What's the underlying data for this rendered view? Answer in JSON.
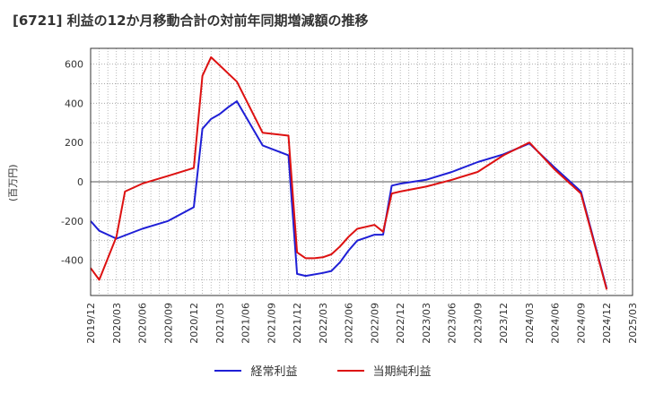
{
  "title": "[6721]  利益の12か月移動合計の対前年同期増減額の推移",
  "chart_data": {
    "type": "line",
    "title": "[6721]  利益の12か月移動合計の対前年同期増減額の推移",
    "ylabel": "(百万円)",
    "xlabel": "",
    "ylim": [
      -580,
      680
    ],
    "yticks": [
      600,
      400,
      200,
      0,
      -200,
      -400
    ],
    "ytick_labels": [
      "600",
      "400",
      "200",
      "0",
      "-200",
      "-400"
    ],
    "xtick_labels": [
      "2019/12",
      "2020/03",
      "2020/06",
      "2020/09",
      "2020/12",
      "2021/03",
      "2021/06",
      "2021/09",
      "2021/12",
      "2022/03",
      "2022/06",
      "2022/09",
      "2022/12",
      "2023/03",
      "2023/06",
      "2023/09",
      "2023/12",
      "2024/03",
      "2024/06",
      "2024/09",
      "2024/12",
      "2025/03"
    ],
    "x_months": [
      "2019/12",
      "2020/01",
      "2020/02",
      "2020/03",
      "2020/04",
      "2020/05",
      "2020/06",
      "2020/07",
      "2020/08",
      "2020/09",
      "2020/10",
      "2020/11",
      "2020/12",
      "2021/01",
      "2021/02",
      "2021/03",
      "2021/04",
      "2021/05",
      "2021/06",
      "2021/07",
      "2021/08",
      "2021/09",
      "2021/10",
      "2021/11",
      "2021/12",
      "2022/01",
      "2022/02",
      "2022/03",
      "2022/04",
      "2022/05",
      "2022/06",
      "2022/07",
      "2022/08",
      "2022/09",
      "2022/10",
      "2022/11",
      "2022/12",
      "2023/01",
      "2023/02",
      "2023/03",
      "2023/04",
      "2023/05",
      "2023/06",
      "2023/07",
      "2023/08",
      "2023/09",
      "2023/10",
      "2023/11",
      "2023/12",
      "2024/01",
      "2024/02",
      "2024/03",
      "2024/04",
      "2024/05",
      "2024/06",
      "2024/07",
      "2024/08",
      "2024/09",
      "2024/10",
      "2024/11",
      "2024/12"
    ],
    "grid": true,
    "legend_position": "bottom",
    "series": [
      {
        "name": "経常利益",
        "color": "#1f1fd6",
        "values": [
          -200,
          -250,
          null,
          -290,
          null,
          null,
          -240,
          null,
          null,
          -200,
          null,
          null,
          -130,
          270,
          320,
          345,
          380,
          410,
          null,
          null,
          185,
          null,
          null,
          135,
          -470,
          -480,
          null,
          -465,
          -455,
          -410,
          -350,
          -300,
          -285,
          -270,
          -270,
          -20,
          -10,
          null,
          null,
          10,
          null,
          null,
          50,
          null,
          null,
          100,
          null,
          null,
          140,
          null,
          null,
          195,
          null,
          null,
          70,
          null,
          null,
          -50,
          null,
          null,
          -545
        ]
      },
      {
        "name": "当期純利益",
        "color": "#dd1111",
        "values": [
          -440,
          -500,
          null,
          -280,
          -50,
          null,
          -10,
          null,
          null,
          30,
          null,
          null,
          70,
          540,
          635,
          null,
          null,
          510,
          null,
          null,
          250,
          null,
          240,
          235,
          -360,
          -390,
          -390,
          -385,
          -370,
          -330,
          -280,
          -240,
          -230,
          -220,
          -255,
          -60,
          -50,
          null,
          null,
          -25,
          null,
          null,
          10,
          null,
          null,
          50,
          null,
          null,
          135,
          null,
          null,
          200,
          null,
          null,
          60,
          null,
          null,
          -60,
          null,
          null,
          -550
        ]
      }
    ]
  }
}
